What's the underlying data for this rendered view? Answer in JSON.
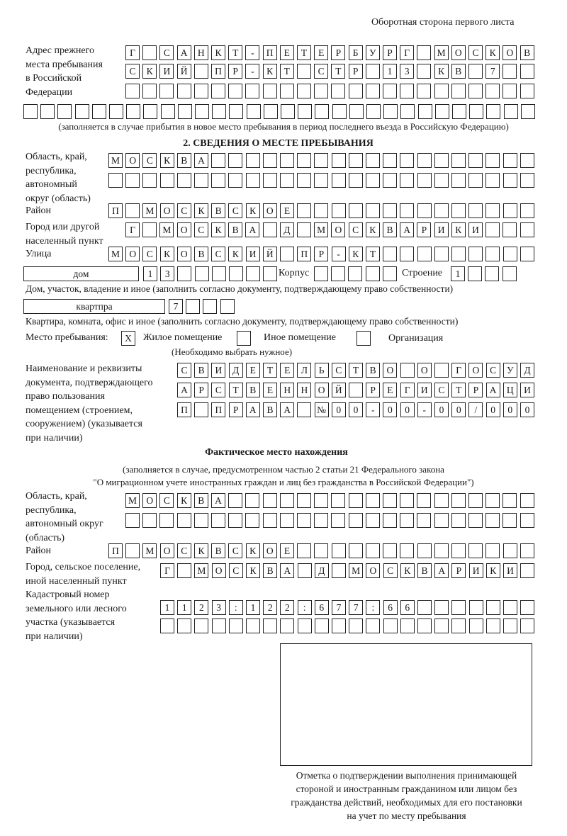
{
  "header": {
    "page_note": "Оборотная сторона первого листа"
  },
  "previous_address": {
    "label": "Адрес прежнего\nместа пребывания\nв Российской\nФедерации",
    "rows": [
      [
        "Г",
        "",
        "С",
        "А",
        "Н",
        "К",
        "Т",
        "-",
        "П",
        "Е",
        "Т",
        "Е",
        "Р",
        "Б",
        "У",
        "Р",
        "Г",
        "",
        "М",
        "О",
        "С",
        "К",
        "О",
        "В"
      ],
      [
        "С",
        "К",
        "И",
        "Й",
        "",
        "П",
        "Р",
        "-",
        "К",
        "Т",
        "",
        "С",
        "Т",
        "Р",
        "",
        "1",
        "3",
        "",
        "К",
        "В",
        "",
        "7",
        "",
        ""
      ],
      [
        "",
        "",
        "",
        "",
        "",
        "",
        "",
        "",
        "",
        "",
        "",
        "",
        "",
        "",
        "",
        "",
        "",
        "",
        "",
        "",
        "",
        "",
        "",
        ""
      ],
      [
        "",
        "",
        "",
        "",
        "",
        "",
        "",
        "",
        "",
        "",
        "",
        "",
        "",
        "",
        "",
        "",
        "",
        "",
        "",
        "",
        "",
        "",
        "",
        "",
        "",
        "",
        "",
        "",
        "",
        ""
      ]
    ],
    "note": "(заполняется в случае прибытия в новое место пребывания в период последнего въезда в Российскую Федерацию)"
  },
  "section2": {
    "title": "2. СВЕДЕНИЯ О МЕСТЕ ПРЕБЫВАНИЯ",
    "region_label": "Область, край,\nреспублика,\nавтономный\nокруг (область)",
    "region_rows": [
      [
        "М",
        "О",
        "С",
        "К",
        "В",
        "А",
        "",
        "",
        "",
        "",
        "",
        "",
        "",
        "",
        "",
        "",
        "",
        "",
        "",
        "",
        "",
        "",
        "",
        "",
        ""
      ],
      [
        "",
        "",
        "",
        "",
        "",
        "",
        "",
        "",
        "",
        "",
        "",
        "",
        "",
        "",
        "",
        "",
        "",
        "",
        "",
        "",
        "",
        "",
        "",
        "",
        ""
      ]
    ],
    "district_label": "Район",
    "district": [
      "П",
      "",
      "М",
      "О",
      "С",
      "К",
      "В",
      "С",
      "К",
      "О",
      "Е",
      "",
      "",
      "",
      "",
      "",
      "",
      "",
      "",
      "",
      "",
      "",
      "",
      "",
      ""
    ],
    "city_label": "Город или другой\nнаселенный пункт",
    "city": [
      "Г",
      "",
      "М",
      "О",
      "С",
      "К",
      "В",
      "А",
      "",
      "Д",
      "",
      "М",
      "О",
      "С",
      "К",
      "В",
      "А",
      "Р",
      "И",
      "К",
      "И",
      "",
      "",
      ""
    ],
    "street_label": "Улица",
    "street": [
      "М",
      "О",
      "С",
      "К",
      "О",
      "В",
      "С",
      "К",
      "И",
      "Й",
      "",
      "П",
      "Р",
      "-",
      "К",
      "Т",
      "",
      "",
      "",
      "",
      "",
      "",
      "",
      "",
      ""
    ],
    "house_type": "дом",
    "house": [
      "1",
      "3",
      "",
      "",
      "",
      "",
      "",
      ""
    ],
    "korpus_label": "Корпус",
    "korpus": [
      "",
      "",
      "",
      "",
      ""
    ],
    "building_label": "Строение",
    "building": [
      "1",
      "",
      "",
      ""
    ],
    "house_note": "Дом, участок, владение и иное (заполнить согласно документу, подтверждающему право собственности)",
    "flat_type": "квартпра",
    "flat": [
      "7",
      "",
      "",
      ""
    ],
    "flat_note": "Квартира, комната, офис и иное (заполнить согласно документу, подтверждающему право собственности)",
    "stay_place_label": "Место пребывания:",
    "options": [
      {
        "label": "Жилое помещение",
        "checked": true,
        "mark": "X"
      },
      {
        "label": "Иное помещение",
        "checked": false,
        "mark": ""
      },
      {
        "label": "Организация",
        "checked": false,
        "mark": ""
      }
    ],
    "choose_note": "(Необходимо выбрать нужное)",
    "doc_label": "Наименование и реквизиты\nдокумента, подтверждающего\nправо пользования\nпомещением (строением,\nсооружением) (указывается\nпри наличии)",
    "doc_rows": [
      [
        "С",
        "В",
        "И",
        "Д",
        "Е",
        "Т",
        "Е",
        "Л",
        "Ь",
        "С",
        "Т",
        "В",
        "О",
        "",
        "О",
        "",
        "Г",
        "О",
        "С",
        "У",
        "Д"
      ],
      [
        "А",
        "Р",
        "С",
        "Т",
        "В",
        "Е",
        "Н",
        "Н",
        "О",
        "Й",
        "",
        "Р",
        "Е",
        "Г",
        "И",
        "С",
        "Т",
        "Р",
        "А",
        "Ц",
        "И"
      ],
      [
        "П",
        "",
        "П",
        "Р",
        "А",
        "В",
        "А",
        "",
        "№",
        "0",
        "0",
        "-",
        "0",
        "0",
        "-",
        "0",
        "0",
        "/",
        "0",
        "0",
        "0"
      ]
    ]
  },
  "actual": {
    "title": "Фактическое место нахождения",
    "note1": "(заполняется в случае, предусмотренном частью 2 статьи 21 Федерального закона",
    "note2": "\"О миграционном учете иностранных граждан и лиц без гражданства в Российской Федерации\")",
    "region_label": "Область, край,\nреспублика,\nавтономный округ\n(область)",
    "region_rows": [
      [
        "М",
        "О",
        "С",
        "К",
        "В",
        "А",
        "",
        "",
        "",
        "",
        "",
        "",
        "",
        "",
        "",
        "",
        "",
        "",
        "",
        "",
        "",
        "",
        "",
        ""
      ],
      [
        "",
        "",
        "",
        "",
        "",
        "",
        "",
        "",
        "",
        "",
        "",
        "",
        "",
        "",
        "",
        "",
        "",
        "",
        "",
        "",
        "",
        "",
        "",
        ""
      ]
    ],
    "district_label": "Район",
    "district": [
      "П",
      "",
      "М",
      "О",
      "С",
      "К",
      "В",
      "С",
      "К",
      "О",
      "Е",
      "",
      "",
      "",
      "",
      "",
      "",
      "",
      "",
      "",
      "",
      "",
      "",
      "",
      ""
    ],
    "city_label": "Город, сельское поселение,\nиной населенный пункт",
    "city": [
      "Г",
      "",
      "М",
      "О",
      "С",
      "К",
      "В",
      "А",
      "",
      "Д",
      "",
      "М",
      "О",
      "С",
      "К",
      "В",
      "А",
      "Р",
      "И",
      "К",
      "И",
      ""
    ],
    "cadastral_label": "Кадастровый номер\nземельного или лесного\nучастка (указывается\nпри наличии)",
    "cadastral_rows": [
      [
        "1",
        "1",
        "2",
        "3",
        ":",
        "1",
        "2",
        "2",
        ":",
        "6",
        "7",
        "7",
        ":",
        "6",
        "6",
        "",
        "",
        "",
        "",
        "",
        "",
        ""
      ],
      [
        "",
        "",
        "",
        "",
        "",
        "",
        "",
        "",
        "",
        "",
        "",
        "",
        "",
        "",
        "",
        "",
        "",
        "",
        "",
        "",
        "",
        ""
      ]
    ]
  },
  "confirmation": {
    "caption": "Отметка о подтверждении выполнения принимающей\nстороной и иностранным гражданином или лицом без\nгражданства действий, необходимых для его постановки\nна учет по месту пребывания"
  }
}
